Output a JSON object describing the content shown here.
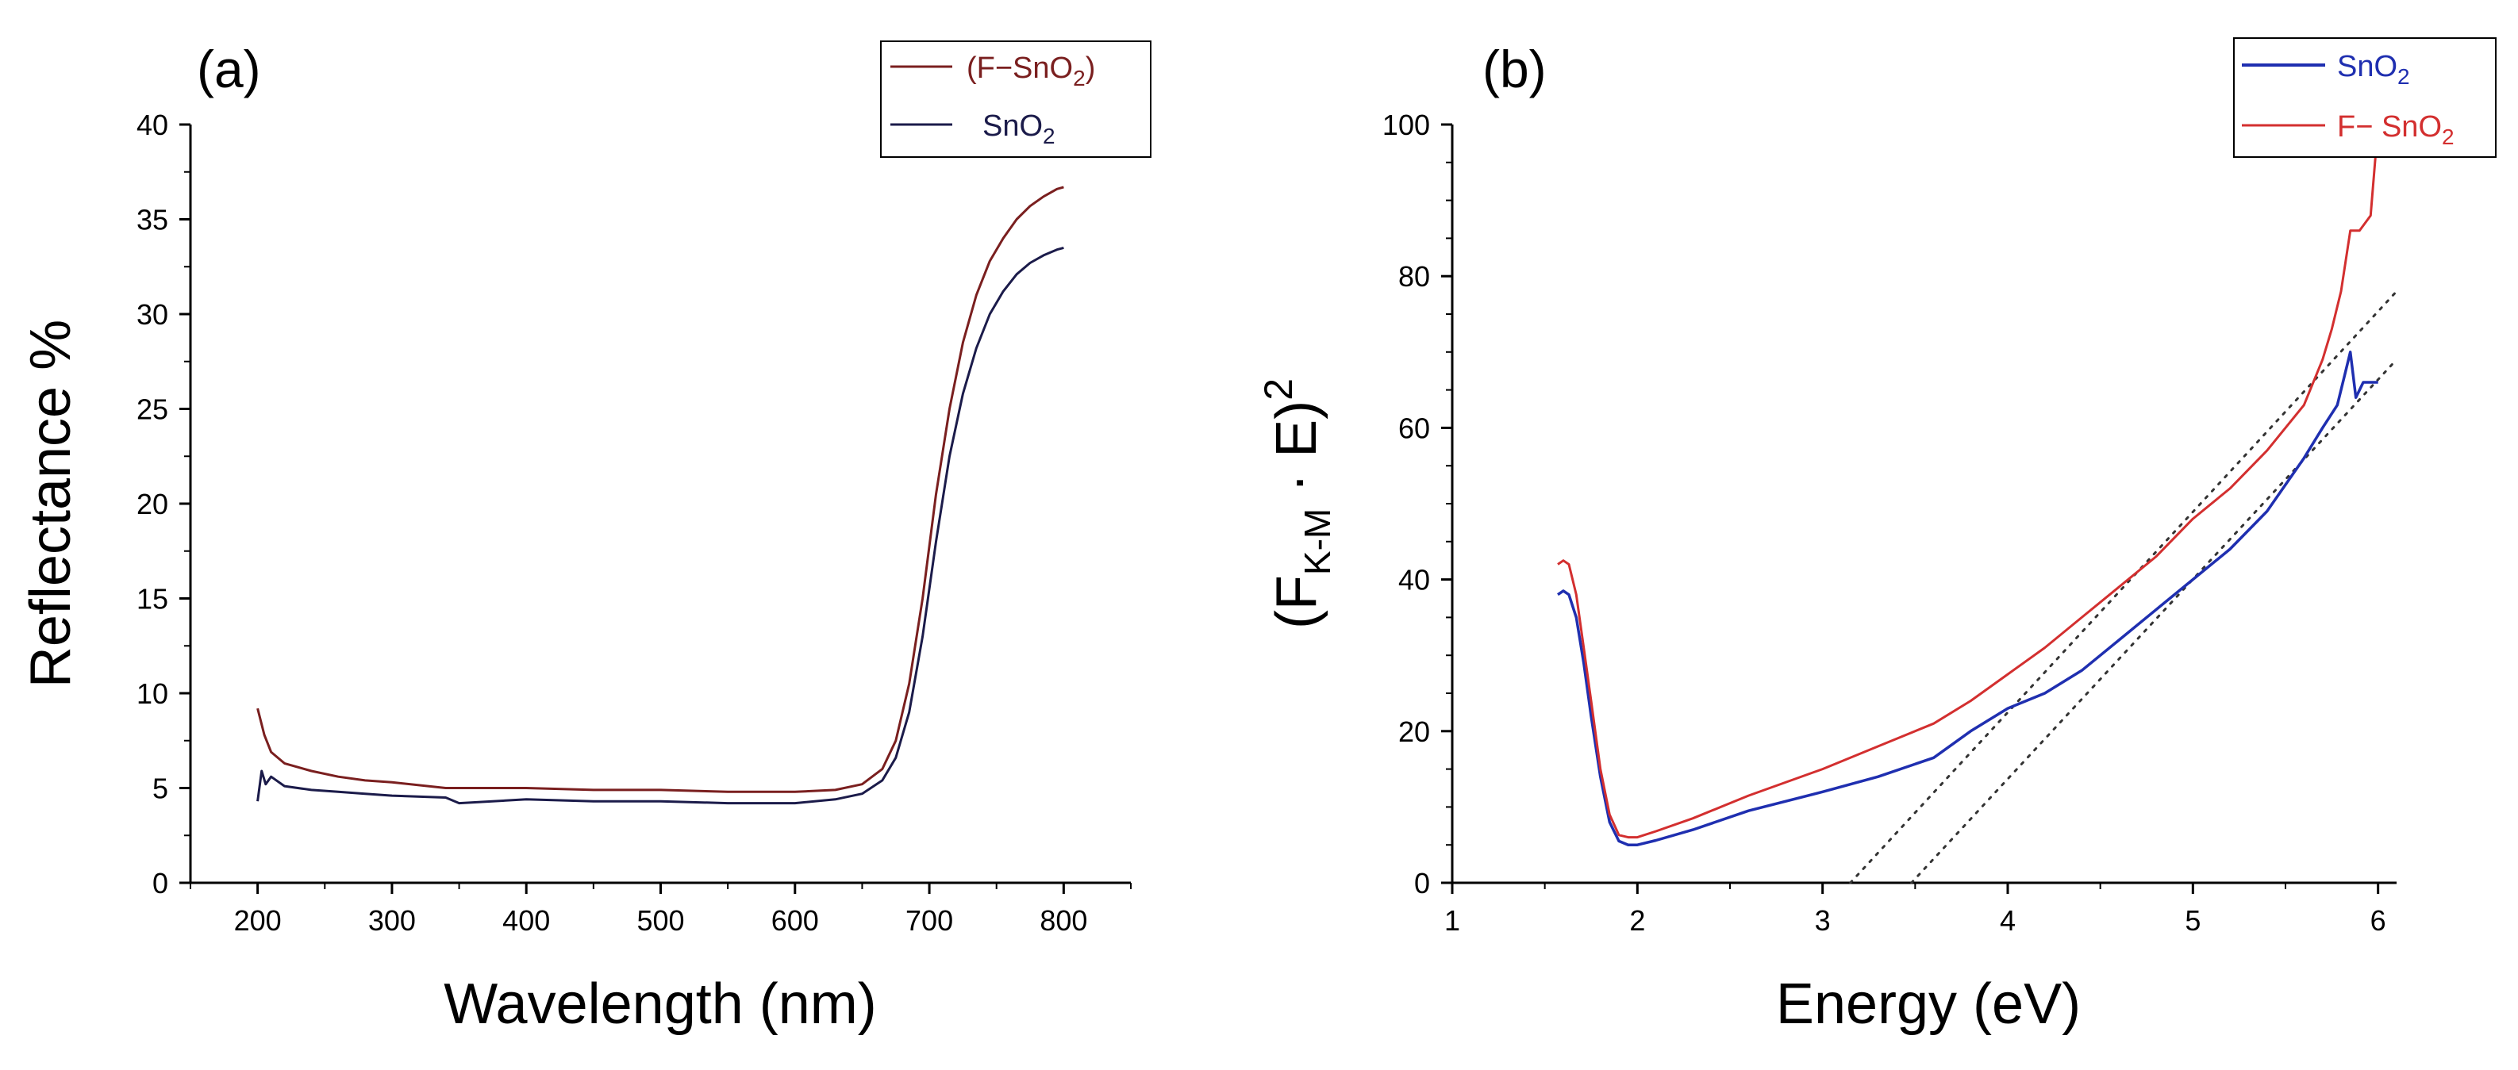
{
  "colors": {
    "f_sno2_a": "#7a1f1f",
    "sno2_a": "#1b1b4a",
    "sno2_b": "#1f2fb0",
    "f_sno2_b": "#d32f2f",
    "fit_line": "#333333"
  },
  "chart_data": [
    {
      "panel_label": "(a)",
      "type": "line",
      "title": "",
      "xlabel": "Wavelength (nm)",
      "ylabel": "Reflectance %",
      "xlim": [
        150,
        850
      ],
      "ylim": [
        0,
        40
      ],
      "xticks": [
        "200",
        "300",
        "400",
        "500",
        "600",
        "700",
        "800"
      ],
      "yticks": [
        "0",
        "5",
        "10",
        "15",
        "20",
        "25",
        "30",
        "35",
        "40"
      ],
      "legend": {
        "position": "top-right"
      },
      "series": [
        {
          "name": "F-SnO2",
          "legend_main": "(F−SnO",
          "legend_sub": "2",
          "legend_tail": ")",
          "x": [
            200,
            205,
            210,
            220,
            240,
            260,
            280,
            300,
            340,
            400,
            450,
            500,
            550,
            600,
            630,
            650,
            665,
            675,
            685,
            695,
            705,
            715,
            725,
            735,
            745,
            755,
            765,
            775,
            785,
            795,
            800
          ],
          "y": [
            9.2,
            7.8,
            6.9,
            6.3,
            5.9,
            5.6,
            5.4,
            5.3,
            5.0,
            5.0,
            4.9,
            4.9,
            4.8,
            4.8,
            4.9,
            5.2,
            6.0,
            7.5,
            10.5,
            15.0,
            20.5,
            25.0,
            28.5,
            31.0,
            32.8,
            34.0,
            35.0,
            35.7,
            36.2,
            36.6,
            36.7
          ]
        },
        {
          "name": "SnO2",
          "legend_main": "SnO",
          "legend_sub": "2",
          "legend_tail": "",
          "x": [
            200,
            203,
            206,
            210,
            220,
            240,
            260,
            280,
            300,
            340,
            350,
            400,
            450,
            500,
            550,
            600,
            630,
            650,
            665,
            675,
            685,
            695,
            705,
            715,
            725,
            735,
            745,
            755,
            765,
            775,
            785,
            795,
            800
          ],
          "y": [
            4.3,
            5.9,
            5.2,
            5.6,
            5.1,
            4.9,
            4.8,
            4.7,
            4.6,
            4.5,
            4.2,
            4.4,
            4.3,
            4.3,
            4.2,
            4.2,
            4.4,
            4.7,
            5.4,
            6.6,
            9.0,
            13.0,
            18.0,
            22.5,
            25.8,
            28.2,
            30.0,
            31.2,
            32.1,
            32.7,
            33.1,
            33.4,
            33.5
          ]
        }
      ]
    },
    {
      "panel_label": "(b)",
      "type": "line",
      "title": "",
      "xlabel": "Energy (eV)",
      "ylabel_main": "(F",
      "ylabel_sub": "K-M",
      "ylabel_mid": " · E)",
      "ylabel_sup": "2",
      "xlim": [
        1,
        6.1
      ],
      "ylim": [
        0,
        100
      ],
      "xticks": [
        "1",
        "2",
        "3",
        "4",
        "5",
        "6"
      ],
      "yticks": [
        "0",
        "20",
        "40",
        "60",
        "80",
        "100"
      ],
      "legend": {
        "position": "top-right"
      },
      "series": [
        {
          "name": "SnO2",
          "legend_main": "SnO",
          "legend_sub": "2",
          "x": [
            1.57,
            1.6,
            1.63,
            1.67,
            1.71,
            1.75,
            1.8,
            1.85,
            1.9,
            1.95,
            2.0,
            2.1,
            2.3,
            2.6,
            3.0,
            3.3,
            3.6,
            3.8,
            4.0,
            4.2,
            4.4,
            4.6,
            4.8,
            5.0,
            5.2,
            5.4,
            5.6,
            5.7,
            5.78,
            5.82,
            5.85,
            5.88,
            5.92,
            5.96,
            6.0
          ],
          "y": [
            38,
            38.5,
            38,
            35,
            29,
            22,
            14,
            8,
            5.5,
            5.0,
            5.0,
            5.6,
            7,
            9.5,
            12,
            14,
            16.5,
            20,
            23,
            25,
            28,
            32,
            36,
            40,
            44,
            49,
            56,
            60,
            63,
            67,
            70,
            64,
            66,
            66,
            66
          ]
        },
        {
          "name": "F-SnO2",
          "legend_main": "F− SnO",
          "legend_sub": "2",
          "x": [
            1.57,
            1.6,
            1.63,
            1.67,
            1.71,
            1.75,
            1.8,
            1.85,
            1.9,
            1.95,
            2.0,
            2.1,
            2.3,
            2.6,
            3.0,
            3.3,
            3.6,
            3.8,
            4.0,
            4.2,
            4.4,
            4.6,
            4.8,
            5.0,
            5.2,
            5.4,
            5.6,
            5.7,
            5.75,
            5.8,
            5.85,
            5.9,
            5.96,
            6.0
          ],
          "y": [
            42,
            42.5,
            42,
            38,
            31,
            24,
            15,
            9,
            6.3,
            6.0,
            6.0,
            6.8,
            8.5,
            11.5,
            15,
            18,
            21,
            24,
            27.5,
            31,
            35,
            39,
            43,
            48,
            52,
            57,
            63,
            69,
            73,
            78,
            86,
            86,
            88,
            100
          ]
        }
      ],
      "tangent_lines": [
        {
          "name": "tangent-fit-f-sno2",
          "x": [
            3.15,
            6.1
          ],
          "y": [
            0,
            78
          ]
        },
        {
          "name": "tangent-fit-sno2",
          "x": [
            3.48,
            6.1
          ],
          "y": [
            0,
            69
          ]
        }
      ]
    }
  ]
}
